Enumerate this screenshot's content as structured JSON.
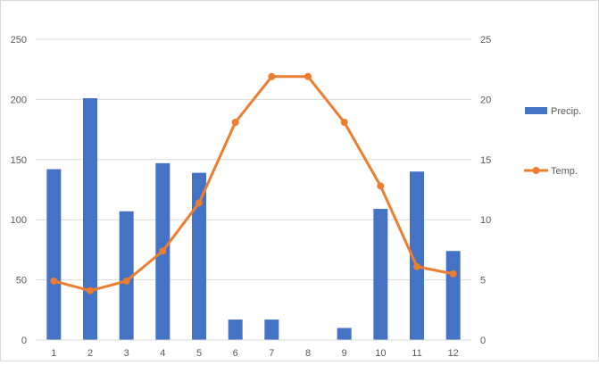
{
  "chart_data": {
    "type": "bar",
    "categories": [
      "1",
      "2",
      "3",
      "4",
      "5",
      "6",
      "7",
      "8",
      "9",
      "10",
      "11",
      "12"
    ],
    "series": [
      {
        "name": "Precip.",
        "type": "bar",
        "axis": "left",
        "color": "#4472c4",
        "values": [
          142,
          201,
          107,
          147,
          139,
          17,
          17,
          0,
          10,
          109,
          140,
          74
        ]
      },
      {
        "name": "Temp.",
        "type": "line",
        "axis": "right",
        "color": "#ed7d31",
        "values": [
          4.9,
          4.1,
          4.9,
          7.4,
          11.4,
          18.1,
          21.9,
          21.9,
          18.1,
          12.8,
          6.1,
          5.5
        ]
      }
    ],
    "y_left": {
      "ticks": [
        "0",
        "50",
        "100",
        "150",
        "200",
        "250"
      ],
      "range": [
        0,
        250
      ]
    },
    "y_right": {
      "ticks": [
        "0",
        "5",
        "10",
        "15",
        "20",
        "25"
      ],
      "range": [
        0,
        25
      ]
    },
    "grid": true,
    "legend_position": "right"
  }
}
